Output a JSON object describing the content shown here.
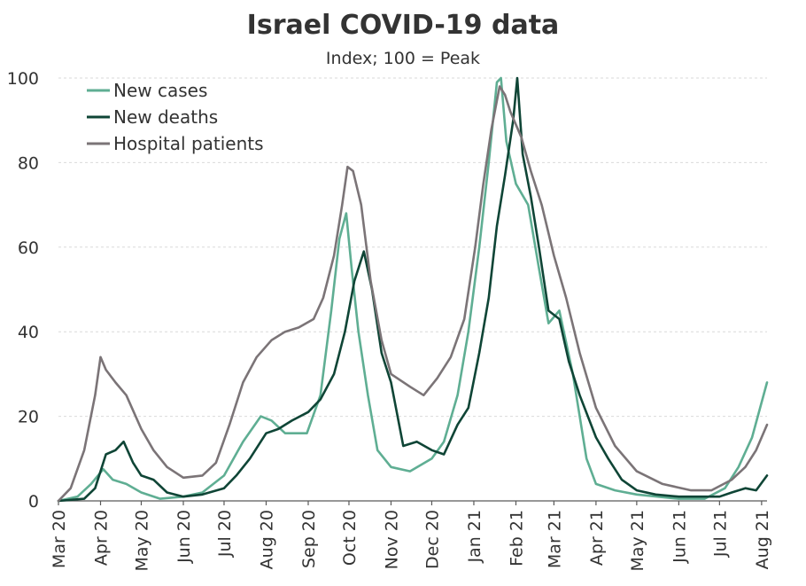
{
  "chart_data": {
    "type": "line",
    "title": "Israel COVID-19 data",
    "subtitle": "Index; 100 = Peak",
    "xlabel": "",
    "ylabel": "",
    "ylim": [
      0,
      100
    ],
    "yticks": [
      0,
      20,
      40,
      60,
      80,
      100
    ],
    "xlim": [
      "2020-03-01",
      "2021-08-05"
    ],
    "xticks": [
      {
        "date": "2020-03-01",
        "label": "Mar 20"
      },
      {
        "date": "2020-04-01",
        "label": "Apr 20"
      },
      {
        "date": "2020-05-01",
        "label": "May 20"
      },
      {
        "date": "2020-06-01",
        "label": "Jun 20"
      },
      {
        "date": "2020-07-01",
        "label": "Jul 20"
      },
      {
        "date": "2020-08-01",
        "label": "Aug 20"
      },
      {
        "date": "2020-09-01",
        "label": "Sep 20"
      },
      {
        "date": "2020-10-01",
        "label": "Oct 20"
      },
      {
        "date": "2020-11-01",
        "label": "Nov 20"
      },
      {
        "date": "2020-12-01",
        "label": "Dec 20"
      },
      {
        "date": "2021-01-01",
        "label": "Jan 21"
      },
      {
        "date": "2021-02-01",
        "label": "Feb 21"
      },
      {
        "date": "2021-03-01",
        "label": "Mar 21"
      },
      {
        "date": "2021-04-01",
        "label": "Apr 21"
      },
      {
        "date": "2021-05-01",
        "label": "May 21"
      },
      {
        "date": "2021-06-01",
        "label": "Jun 21"
      },
      {
        "date": "2021-07-01",
        "label": "Jul 21"
      },
      {
        "date": "2021-08-01",
        "label": "Aug 21"
      }
    ],
    "grid": "horizontal",
    "legend": "top-left",
    "series": [
      {
        "name": "New cases",
        "color": "#5fae93",
        "points": [
          [
            "2020-03-01",
            0
          ],
          [
            "2020-03-15",
            1
          ],
          [
            "2020-03-25",
            4
          ],
          [
            "2020-04-03",
            7.5
          ],
          [
            "2020-04-10",
            5
          ],
          [
            "2020-04-20",
            4
          ],
          [
            "2020-05-01",
            2
          ],
          [
            "2020-05-15",
            0.5
          ],
          [
            "2020-06-01",
            1
          ],
          [
            "2020-06-15",
            2
          ],
          [
            "2020-07-01",
            6
          ],
          [
            "2020-07-15",
            14
          ],
          [
            "2020-07-28",
            20
          ],
          [
            "2020-08-05",
            19
          ],
          [
            "2020-08-15",
            16
          ],
          [
            "2020-08-31",
            16
          ],
          [
            "2020-09-10",
            25
          ],
          [
            "2020-09-18",
            45
          ],
          [
            "2020-09-24",
            62
          ],
          [
            "2020-09-29",
            68
          ],
          [
            "2020-10-03",
            55
          ],
          [
            "2020-10-08",
            40
          ],
          [
            "2020-10-15",
            25
          ],
          [
            "2020-10-22",
            12
          ],
          [
            "2020-11-01",
            8
          ],
          [
            "2020-11-15",
            7
          ],
          [
            "2020-12-01",
            10
          ],
          [
            "2020-12-10",
            14
          ],
          [
            "2020-12-20",
            25
          ],
          [
            "2020-12-28",
            40
          ],
          [
            "2021-01-05",
            60
          ],
          [
            "2021-01-12",
            80
          ],
          [
            "2021-01-18",
            99
          ],
          [
            "2021-01-21",
            100
          ],
          [
            "2021-01-25",
            85
          ],
          [
            "2021-02-01",
            75
          ],
          [
            "2021-02-10",
            70
          ],
          [
            "2021-02-18",
            55
          ],
          [
            "2021-02-25",
            42
          ],
          [
            "2021-03-05",
            45
          ],
          [
            "2021-03-15",
            30
          ],
          [
            "2021-03-25",
            10
          ],
          [
            "2021-04-01",
            4
          ],
          [
            "2021-04-15",
            2.5
          ],
          [
            "2021-05-01",
            1.5
          ],
          [
            "2021-06-01",
            0.5
          ],
          [
            "2021-06-20",
            0.5
          ],
          [
            "2021-07-05",
            3
          ],
          [
            "2021-07-15",
            8
          ],
          [
            "2021-07-25",
            15
          ],
          [
            "2021-08-05",
            28
          ]
        ]
      },
      {
        "name": "New deaths",
        "color": "#0f4536",
        "points": [
          [
            "2020-03-01",
            0
          ],
          [
            "2020-03-20",
            0.5
          ],
          [
            "2020-03-28",
            3
          ],
          [
            "2020-04-05",
            11
          ],
          [
            "2020-04-12",
            12
          ],
          [
            "2020-04-18",
            14
          ],
          [
            "2020-04-25",
            9
          ],
          [
            "2020-05-01",
            6
          ],
          [
            "2020-05-10",
            5
          ],
          [
            "2020-05-20",
            2
          ],
          [
            "2020-06-01",
            1
          ],
          [
            "2020-06-15",
            1.5
          ],
          [
            "2020-07-01",
            3
          ],
          [
            "2020-07-10",
            6
          ],
          [
            "2020-07-20",
            10
          ],
          [
            "2020-08-01",
            16
          ],
          [
            "2020-08-10",
            17
          ],
          [
            "2020-08-20",
            19
          ],
          [
            "2020-09-01",
            21
          ],
          [
            "2020-09-10",
            24
          ],
          [
            "2020-09-20",
            30
          ],
          [
            "2020-09-28",
            40
          ],
          [
            "2020-10-05",
            52
          ],
          [
            "2020-10-12",
            59
          ],
          [
            "2020-10-18",
            50
          ],
          [
            "2020-10-25",
            35
          ],
          [
            "2020-11-01",
            28
          ],
          [
            "2020-11-10",
            13
          ],
          [
            "2020-11-20",
            14
          ],
          [
            "2020-12-01",
            12
          ],
          [
            "2020-12-10",
            11
          ],
          [
            "2020-12-20",
            18
          ],
          [
            "2020-12-28",
            22
          ],
          [
            "2021-01-05",
            35
          ],
          [
            "2021-01-12",
            48
          ],
          [
            "2021-01-18",
            65
          ],
          [
            "2021-01-24",
            77
          ],
          [
            "2021-01-30",
            90
          ],
          [
            "2021-02-02",
            100
          ],
          [
            "2021-02-06",
            82
          ],
          [
            "2021-02-12",
            72
          ],
          [
            "2021-02-18",
            60
          ],
          [
            "2021-02-25",
            45
          ],
          [
            "2021-03-05",
            43
          ],
          [
            "2021-03-12",
            33
          ],
          [
            "2021-03-20",
            25
          ],
          [
            "2021-04-01",
            15
          ],
          [
            "2021-04-10",
            10
          ],
          [
            "2021-04-20",
            5
          ],
          [
            "2021-05-01",
            2.5
          ],
          [
            "2021-05-15",
            1.5
          ],
          [
            "2021-06-01",
            1
          ],
          [
            "2021-06-20",
            1
          ],
          [
            "2021-07-01",
            1
          ],
          [
            "2021-07-10",
            2
          ],
          [
            "2021-07-20",
            3
          ],
          [
            "2021-07-28",
            2.5
          ],
          [
            "2021-08-05",
            6
          ]
        ]
      },
      {
        "name": "Hospital patients",
        "color": "#7b7477",
        "points": [
          [
            "2020-03-01",
            0
          ],
          [
            "2020-03-10",
            3
          ],
          [
            "2020-03-20",
            12
          ],
          [
            "2020-03-28",
            25
          ],
          [
            "2020-04-01",
            34
          ],
          [
            "2020-04-05",
            31
          ],
          [
            "2020-04-12",
            28
          ],
          [
            "2020-04-20",
            25
          ],
          [
            "2020-05-01",
            17
          ],
          [
            "2020-05-10",
            12
          ],
          [
            "2020-05-20",
            8
          ],
          [
            "2020-06-01",
            5.5
          ],
          [
            "2020-06-15",
            6
          ],
          [
            "2020-06-25",
            9
          ],
          [
            "2020-07-05",
            18
          ],
          [
            "2020-07-15",
            28
          ],
          [
            "2020-07-25",
            34
          ],
          [
            "2020-08-05",
            38
          ],
          [
            "2020-08-15",
            40
          ],
          [
            "2020-08-25",
            41
          ],
          [
            "2020-09-05",
            43
          ],
          [
            "2020-09-12",
            48
          ],
          [
            "2020-09-20",
            58
          ],
          [
            "2020-09-26",
            70
          ],
          [
            "2020-09-30",
            79
          ],
          [
            "2020-10-04",
            78
          ],
          [
            "2020-10-10",
            70
          ],
          [
            "2020-10-17",
            52
          ],
          [
            "2020-10-25",
            38
          ],
          [
            "2020-11-01",
            30
          ],
          [
            "2020-11-15",
            27
          ],
          [
            "2020-11-25",
            25
          ],
          [
            "2020-12-05",
            29
          ],
          [
            "2020-12-15",
            34
          ],
          [
            "2020-12-25",
            43
          ],
          [
            "2021-01-02",
            60
          ],
          [
            "2021-01-08",
            75
          ],
          [
            "2021-01-14",
            88
          ],
          [
            "2021-01-20",
            98
          ],
          [
            "2021-01-24",
            96
          ],
          [
            "2021-01-28",
            92
          ],
          [
            "2021-02-05",
            86
          ],
          [
            "2021-02-12",
            78
          ],
          [
            "2021-02-20",
            70
          ],
          [
            "2021-03-01",
            58
          ],
          [
            "2021-03-10",
            48
          ],
          [
            "2021-03-20",
            35
          ],
          [
            "2021-04-01",
            22
          ],
          [
            "2021-04-15",
            13
          ],
          [
            "2021-05-01",
            7
          ],
          [
            "2021-05-20",
            4
          ],
          [
            "2021-06-10",
            2.5
          ],
          [
            "2021-06-25",
            2.5
          ],
          [
            "2021-07-10",
            5
          ],
          [
            "2021-07-20",
            8
          ],
          [
            "2021-07-28",
            12
          ],
          [
            "2021-08-05",
            18
          ]
        ]
      }
    ]
  }
}
